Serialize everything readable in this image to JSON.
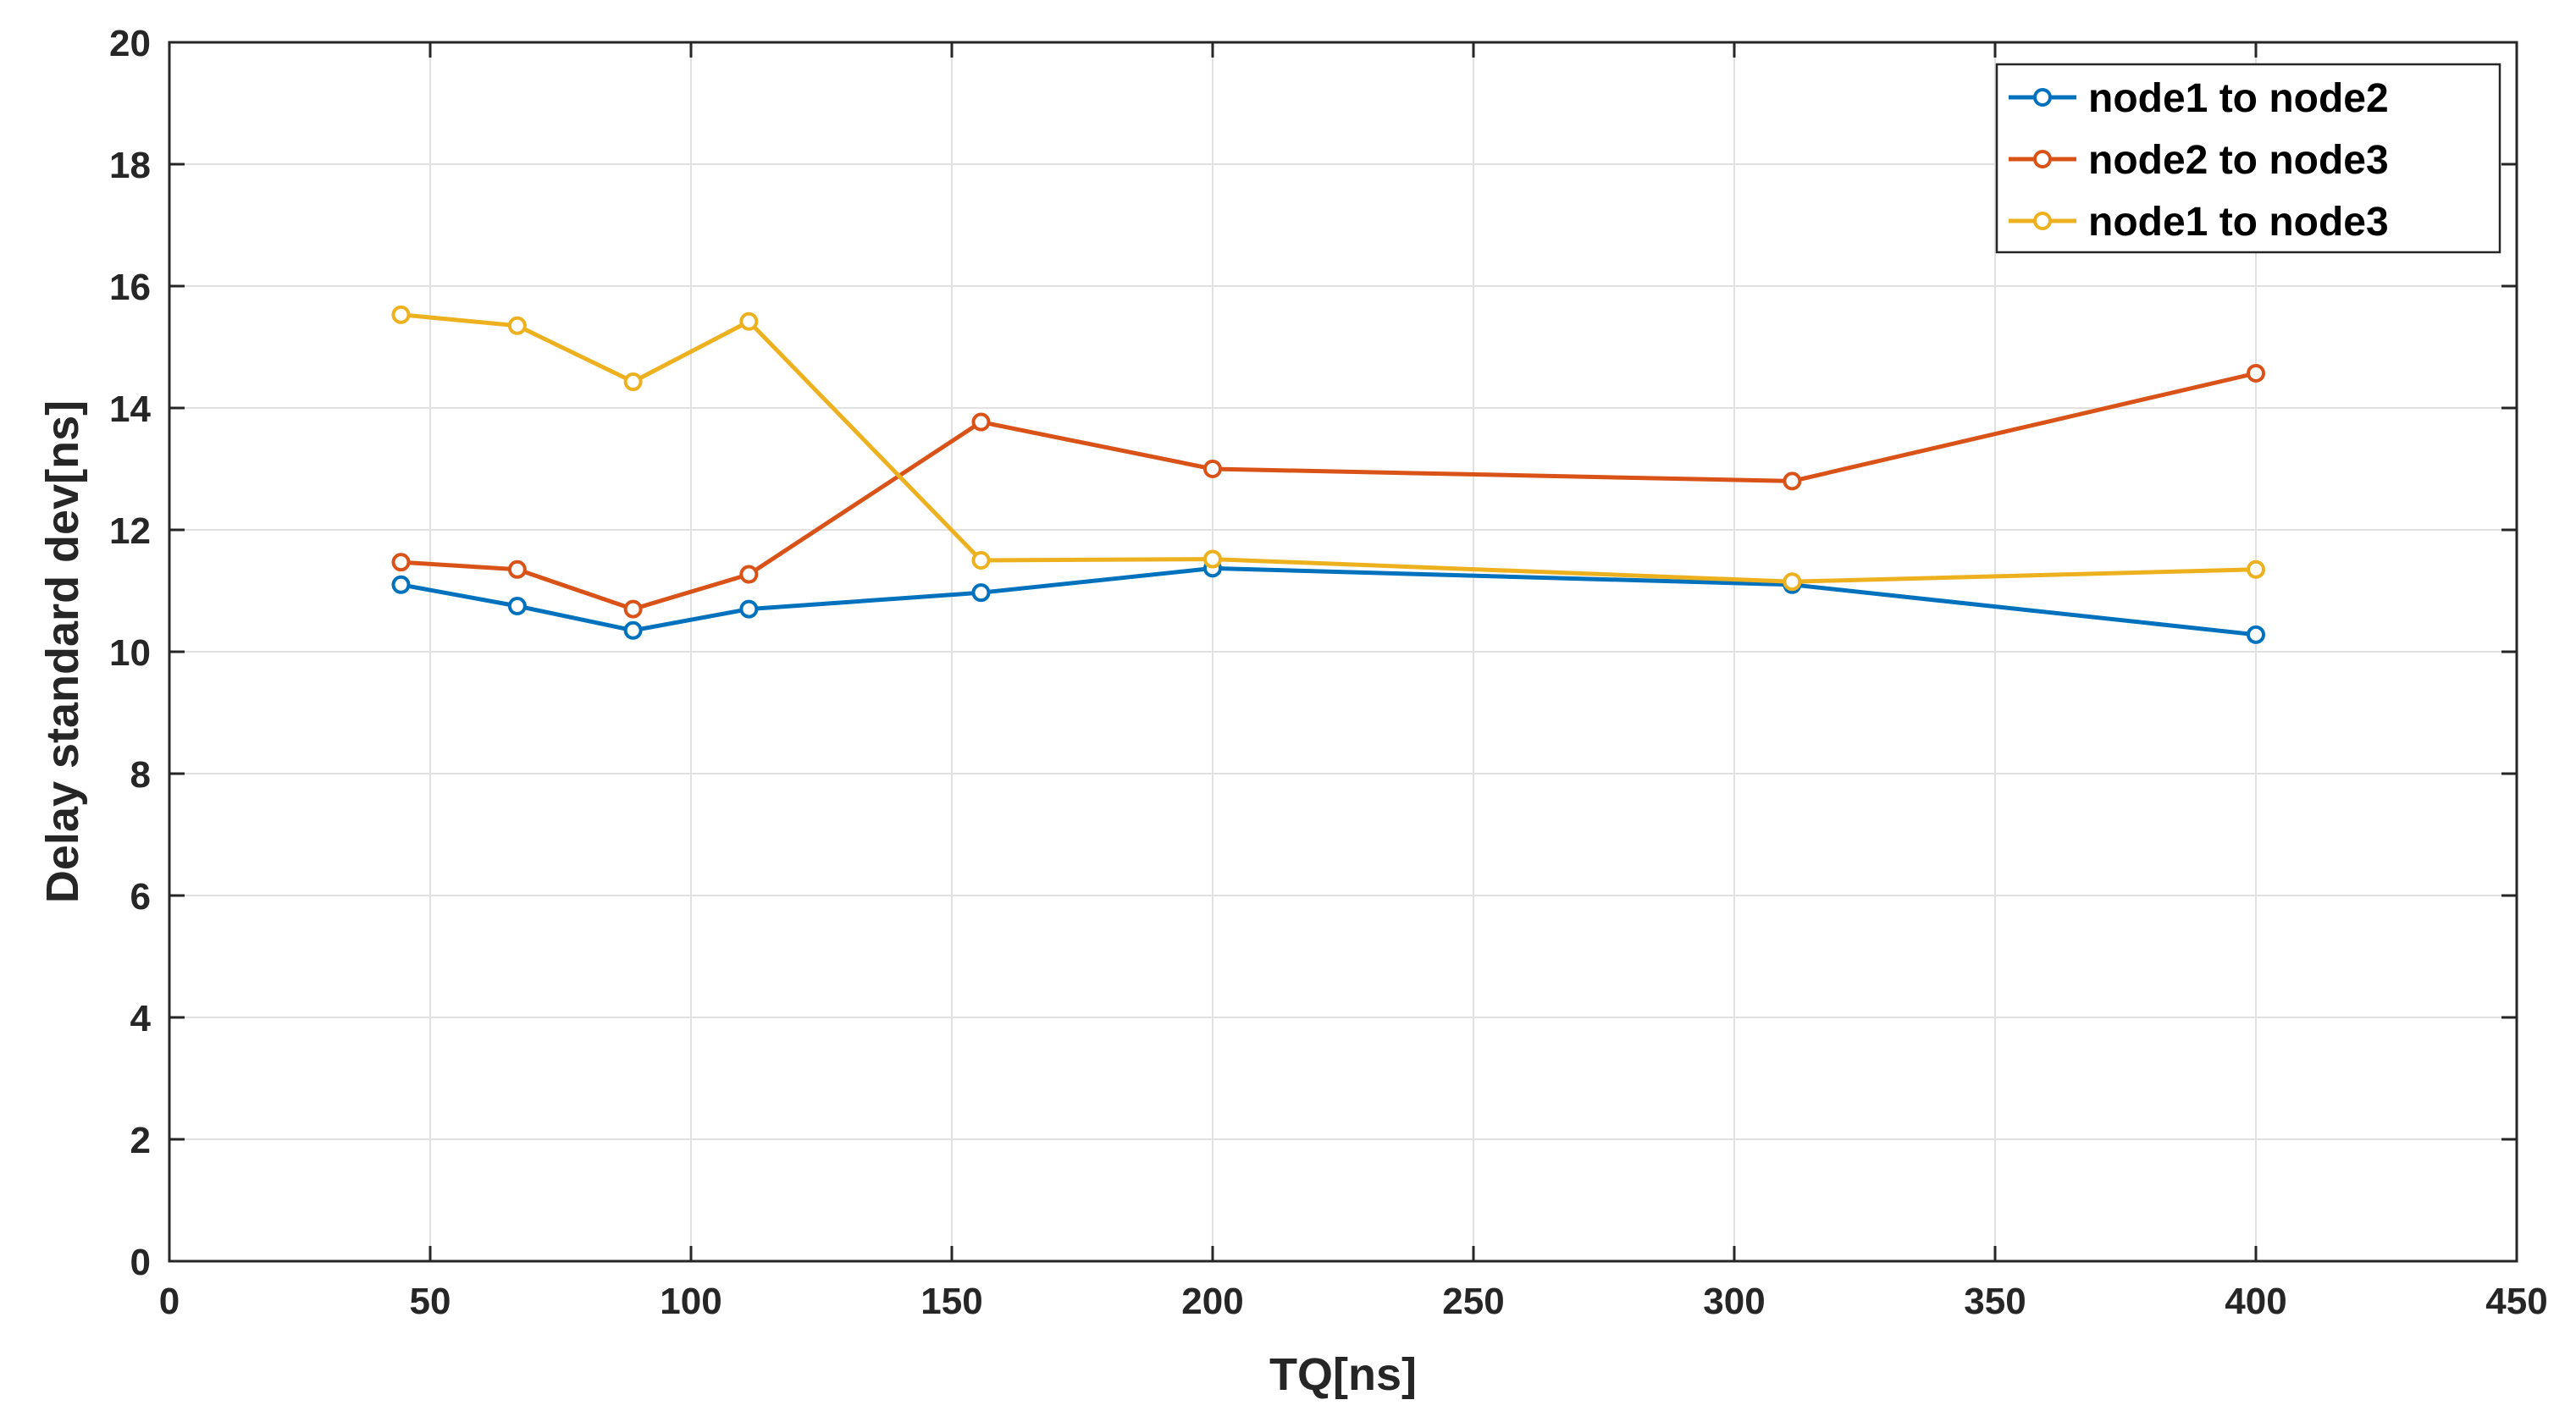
{
  "chart_data": {
    "type": "line",
    "title": "",
    "xlabel": "TQ[ns]",
    "ylabel": "Delay standard dev[ns]",
    "xlim": [
      0,
      450
    ],
    "ylim": [
      0,
      20
    ],
    "xticks": [
      0,
      50,
      100,
      150,
      200,
      250,
      300,
      350,
      400,
      450
    ],
    "yticks": [
      0,
      2,
      4,
      6,
      8,
      10,
      12,
      14,
      16,
      18,
      20
    ],
    "grid": true,
    "legend_position": "top-right",
    "x": [
      44.4,
      66.7,
      88.9,
      111.1,
      155.6,
      200,
      311.1,
      400
    ],
    "series": [
      {
        "name": "node1 to node2",
        "color": "#0072BD",
        "values": [
          11.1,
          10.75,
          10.35,
          10.7,
          10.97,
          11.37,
          11.1,
          10.28
        ]
      },
      {
        "name": "node2 to node3",
        "color": "#D95319",
        "values": [
          11.47,
          11.35,
          10.7,
          11.27,
          13.77,
          13.0,
          12.8,
          14.57
        ]
      },
      {
        "name": "node1 to node3",
        "color": "#EDB120",
        "values": [
          15.53,
          15.35,
          14.43,
          15.42,
          11.5,
          11.52,
          11.15,
          11.35
        ]
      }
    ]
  }
}
